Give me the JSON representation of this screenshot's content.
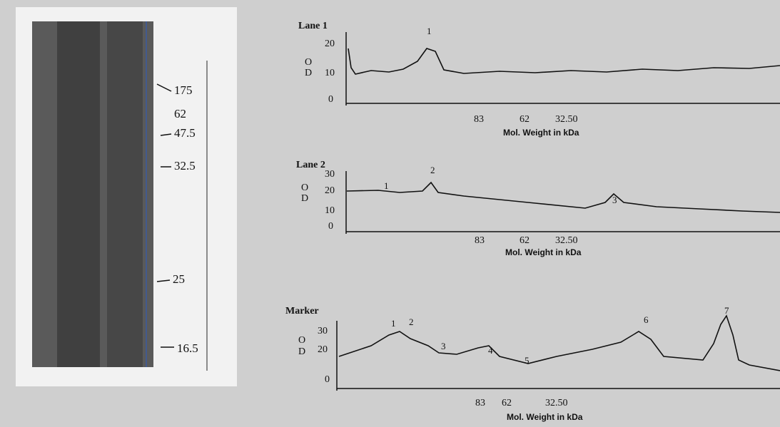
{
  "gel": {
    "markers": [
      "175",
      "62",
      "47.5",
      "32.5",
      "25",
      "16.5"
    ]
  },
  "panels": [
    {
      "title": "Lane 1",
      "od": [
        "O",
        "D"
      ],
      "yticks": [
        "20",
        "10",
        "0"
      ],
      "xticks": [
        "83",
        "62",
        "32.50"
      ],
      "xlabel": "Mol. Weight in kDa",
      "peaks": [
        "1"
      ]
    },
    {
      "title": "Lane 2",
      "od": [
        "O",
        "D"
      ],
      "yticks": [
        "30",
        "20",
        "10",
        "0"
      ],
      "xticks": [
        "83",
        "62",
        "32.50"
      ],
      "xlabel": "Mol. Weight in kDa",
      "peaks": [
        "1",
        "2",
        "3"
      ]
    },
    {
      "title": "Marker",
      "od": [
        "O",
        "D"
      ],
      "yticks": [
        "30",
        "20",
        "0"
      ],
      "xticks": [
        "83",
        "62",
        "32.50"
      ],
      "xlabel": "Mol. Weight in kDa",
      "peaks": [
        "1",
        "2",
        "3",
        "4",
        "5",
        "6",
        "7"
      ]
    }
  ]
}
